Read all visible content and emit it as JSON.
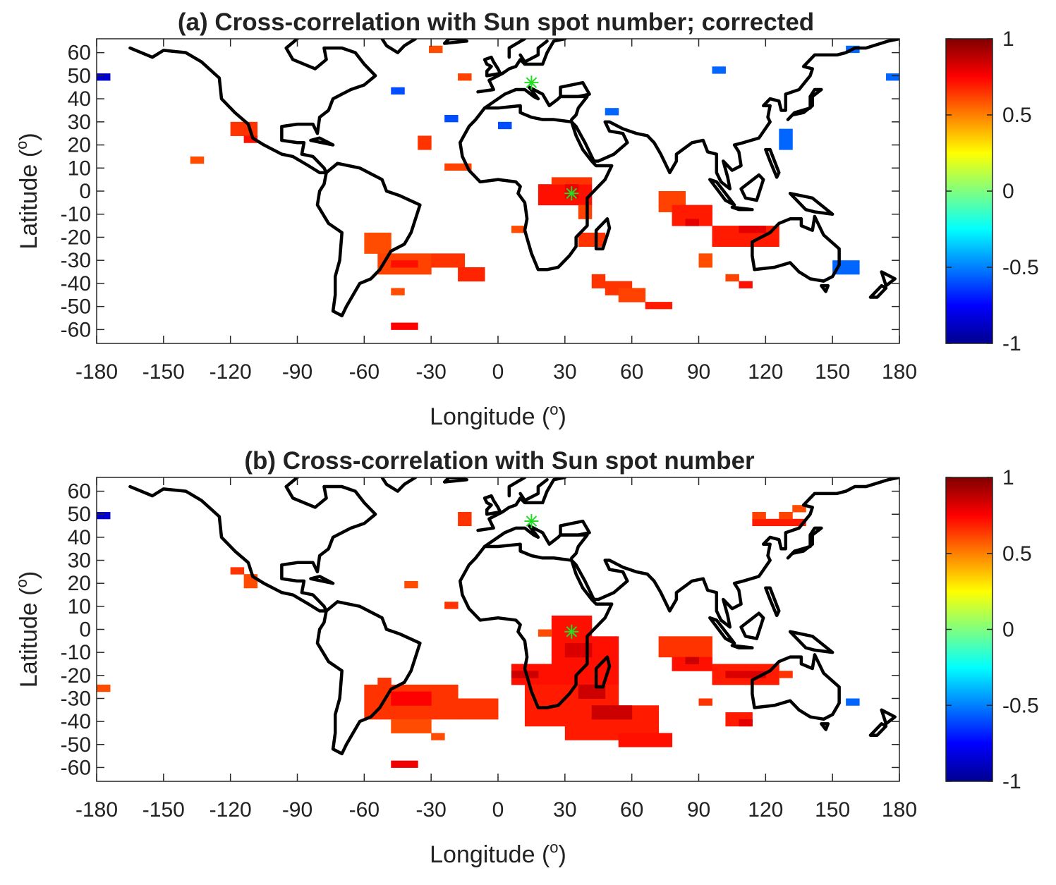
{
  "chart_data": [
    {
      "type": "heatmap",
      "title": "(a) Cross-correlation with Sun spot number; corrected",
      "xlabel": "Longitude (o)",
      "ylabel": "Latitude (o)",
      "xlim": [
        -180,
        180
      ],
      "ylim": [
        -66,
        66
      ],
      "xticks": [
        -180,
        -150,
        -120,
        -90,
        -60,
        -30,
        0,
        30,
        60,
        90,
        120,
        150,
        180
      ],
      "yticks": [
        60,
        50,
        40,
        30,
        20,
        10,
        0,
        -10,
        -20,
        -30,
        -40,
        -50,
        -60
      ],
      "colorbar": {
        "range": [
          -1,
          1
        ],
        "ticks": [
          1,
          0.5,
          0,
          -0.5,
          -1
        ],
        "colormap": "jet"
      },
      "markers": [
        {
          "lon": 15,
          "lat": 47,
          "symbol": "asterisk",
          "color": "#22dd22"
        },
        {
          "lon": 33,
          "lat": -1,
          "symbol": "asterisk",
          "color": "#22dd22"
        }
      ],
      "cells_format": "[lon_west, lon_east, lat_south, lat_north, correlation]",
      "cells": [
        [
          -180,
          -174,
          48,
          51,
          -0.85
        ],
        [
          -31,
          -25,
          60,
          63,
          0.6
        ],
        [
          -18,
          -12,
          48,
          51,
          0.62
        ],
        [
          -48,
          -42,
          42,
          45,
          -0.6
        ],
        [
          -24,
          -18,
          30,
          33,
          -0.6
        ],
        [
          0,
          6,
          27,
          30,
          -0.6
        ],
        [
          -36,
          -30,
          18,
          24,
          0.65
        ],
        [
          -120,
          -108,
          24,
          30,
          0.65
        ],
        [
          -114,
          -108,
          21,
          24,
          0.72
        ],
        [
          -138,
          -132,
          12,
          15,
          0.6
        ],
        [
          -24,
          -12,
          9,
          12,
          0.62
        ],
        [
          18,
          42,
          -6,
          3,
          0.72
        ],
        [
          24,
          42,
          3,
          6,
          0.65
        ],
        [
          30,
          36,
          -3,
          3,
          0.78
        ],
        [
          36,
          42,
          -12,
          -6,
          0.62
        ],
        [
          6,
          12,
          -18,
          -15,
          0.6
        ],
        [
          36,
          48,
          -24,
          -18,
          0.65
        ],
        [
          -60,
          -48,
          -27,
          -18,
          0.6
        ],
        [
          -54,
          -30,
          -36,
          -27,
          0.62
        ],
        [
          -48,
          -36,
          -33,
          -30,
          0.72
        ],
        [
          -30,
          -15,
          -33,
          -27,
          0.65
        ],
        [
          -18,
          -6,
          -39,
          -33,
          0.68
        ],
        [
          -48,
          -42,
          -45,
          -42,
          0.6
        ],
        [
          -48,
          -36,
          -60,
          -57,
          0.75
        ],
        [
          42,
          48,
          -42,
          -36,
          0.65
        ],
        [
          48,
          60,
          -45,
          -39,
          0.65
        ],
        [
          54,
          66,
          -48,
          -42,
          0.62
        ],
        [
          66,
          78,
          -51,
          -48,
          0.7
        ],
        [
          72,
          84,
          -9,
          0,
          0.62
        ],
        [
          78,
          96,
          -15,
          -6,
          0.7
        ],
        [
          84,
          90,
          -15,
          -12,
          0.8
        ],
        [
          90,
          96,
          -33,
          -27,
          0.6
        ],
        [
          96,
          126,
          -24,
          -15,
          0.7
        ],
        [
          108,
          120,
          -18,
          -15,
          0.8
        ],
        [
          102,
          108,
          -39,
          -36,
          0.62
        ],
        [
          108,
          114,
          -42,
          -39,
          0.72
        ],
        [
          96,
          102,
          51,
          54,
          -0.55
        ],
        [
          48,
          54,
          33,
          36,
          -0.55
        ],
        [
          126,
          132,
          18,
          27,
          -0.55
        ],
        [
          150,
          162,
          -36,
          -30,
          -0.55
        ],
        [
          156,
          162,
          60,
          63,
          -0.55
        ],
        [
          174,
          180,
          48,
          51,
          -0.55
        ]
      ]
    },
    {
      "type": "heatmap",
      "title": "(b) Cross-correlation with Sun spot number",
      "xlabel": "Longitude (o)",
      "ylabel": "Latitude (o)",
      "xlim": [
        -180,
        180
      ],
      "ylim": [
        -66,
        66
      ],
      "xticks": [
        -180,
        -150,
        -120,
        -90,
        -60,
        -30,
        0,
        30,
        60,
        90,
        120,
        150,
        180
      ],
      "yticks": [
        60,
        50,
        40,
        30,
        20,
        10,
        0,
        -10,
        -20,
        -30,
        -40,
        -50,
        -60
      ],
      "colorbar": {
        "range": [
          -1,
          1
        ],
        "ticks": [
          1,
          0.5,
          0,
          -0.5,
          -1
        ],
        "colormap": "jet"
      },
      "markers": [
        {
          "lon": 15,
          "lat": 47,
          "symbol": "asterisk",
          "color": "#22dd22"
        },
        {
          "lon": 33,
          "lat": -1,
          "symbol": "asterisk",
          "color": "#22dd22"
        }
      ],
      "cells_format": "[lon_west, lon_east, lat_south, lat_north, correlation]",
      "cells": [
        [
          -180,
          -174,
          48,
          51,
          -0.85
        ],
        [
          -18,
          -12,
          45,
          51,
          0.65
        ],
        [
          -120,
          -114,
          24,
          27,
          0.65
        ],
        [
          -114,
          -108,
          18,
          24,
          0.6
        ],
        [
          -42,
          -36,
          18,
          21,
          0.6
        ],
        [
          -24,
          -18,
          9,
          12,
          0.65
        ],
        [
          -180,
          -174,
          -27,
          -24,
          0.6
        ],
        [
          24,
          42,
          -3,
          6,
          0.72
        ],
        [
          18,
          24,
          -3,
          0,
          0.6
        ],
        [
          24,
          54,
          -15,
          -3,
          0.72
        ],
        [
          30,
          42,
          -12,
          -6,
          0.82
        ],
        [
          6,
          54,
          -24,
          -15,
          0.72
        ],
        [
          6,
          18,
          -21,
          -18,
          0.85
        ],
        [
          12,
          54,
          -33,
          -24,
          0.7
        ],
        [
          36,
          48,
          -30,
          -24,
          0.85
        ],
        [
          12,
          72,
          -42,
          -33,
          0.7
        ],
        [
          42,
          60,
          -39,
          -33,
          0.85
        ],
        [
          30,
          72,
          -48,
          -42,
          0.7
        ],
        [
          54,
          78,
          -51,
          -45,
          0.72
        ],
        [
          72,
          96,
          -12,
          -3,
          0.65
        ],
        [
          78,
          96,
          -18,
          -12,
          0.72
        ],
        [
          84,
          90,
          -15,
          -12,
          0.85
        ],
        [
          96,
          126,
          -24,
          -15,
          0.7
        ],
        [
          102,
          120,
          -21,
          -18,
          0.82
        ],
        [
          126,
          132,
          -21,
          -18,
          0.65
        ],
        [
          90,
          96,
          -33,
          -30,
          0.65
        ],
        [
          102,
          114,
          -42,
          -36,
          0.7
        ],
        [
          108,
          114,
          -42,
          -39,
          0.8
        ],
        [
          156,
          162,
          -33,
          -30,
          -0.55
        ],
        [
          114,
          138,
          45,
          48,
          0.7
        ],
        [
          114,
          120,
          48,
          51,
          0.62
        ],
        [
          126,
          132,
          48,
          51,
          0.62
        ],
        [
          132,
          138,
          51,
          54,
          0.6
        ],
        [
          -54,
          -48,
          -24,
          -21,
          0.65
        ],
        [
          -60,
          -18,
          -39,
          -24,
          0.65
        ],
        [
          -48,
          -30,
          -33,
          -27,
          0.75
        ],
        [
          -18,
          0,
          -39,
          -30,
          0.65
        ],
        [
          -48,
          -30,
          -45,
          -39,
          0.6
        ],
        [
          -30,
          -24,
          -48,
          -45,
          0.6
        ],
        [
          -48,
          -36,
          -60,
          -57,
          0.78
        ]
      ]
    }
  ]
}
